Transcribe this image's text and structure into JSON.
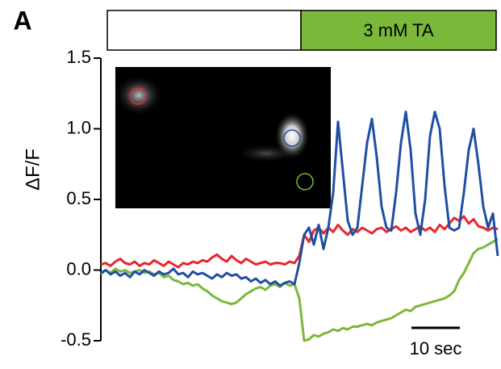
{
  "chart_data": {
    "type": "line",
    "panel_label": "A",
    "stimulus_label": "3 mM TA",
    "y_label": "ΔF/F",
    "scale_bar": {
      "value": 10,
      "label": "10 sec"
    },
    "ylim": [
      -0.5,
      1.5
    ],
    "yticks": [
      -0.5,
      {
        "value": 0,
        "label": "0.0"
      },
      0.5,
      {
        "value": 1,
        "label": "1.0"
      },
      1.5
    ],
    "xlim": [
      0,
      82
    ],
    "x": [
      0,
      1,
      2,
      3,
      4,
      5,
      6,
      7,
      8,
      9,
      10,
      11,
      12,
      13,
      14,
      15,
      16,
      17,
      18,
      19,
      20,
      21,
      22,
      23,
      24,
      25,
      26,
      27,
      28,
      29,
      30,
      31,
      32,
      33,
      34,
      35,
      36,
      37,
      38,
      39,
      40,
      41,
      42,
      43,
      44,
      45,
      46,
      47,
      48,
      49,
      50,
      51,
      52,
      53,
      54,
      55,
      56,
      57,
      58,
      59,
      60,
      61,
      62,
      63,
      64,
      65,
      66,
      67,
      68,
      69,
      70,
      71,
      72,
      73,
      74,
      75,
      76,
      77,
      78,
      79,
      80,
      81,
      82
    ],
    "series": [
      {
        "color": "#e8262a",
        "values": [
          0.04,
          0.05,
          0.03,
          0.06,
          0.08,
          0.05,
          0.04,
          0.06,
          0.03,
          0.05,
          0.04,
          0.07,
          0.05,
          0.03,
          0.06,
          0.04,
          0.02,
          0.05,
          0.04,
          0.06,
          0.05,
          0.07,
          0.06,
          0.09,
          0.11,
          0.08,
          0.06,
          0.1,
          0.07,
          0.05,
          0.08,
          0.06,
          0.04,
          0.05,
          0.06,
          0.04,
          0.05,
          0.05,
          0.04,
          0.06,
          0.05,
          0.1,
          0.25,
          0.2,
          0.28,
          0.3,
          0.26,
          0.3,
          0.27,
          0.32,
          0.28,
          0.25,
          0.29,
          0.27,
          0.3,
          0.28,
          0.26,
          0.29,
          0.3,
          0.27,
          0.29,
          0.31,
          0.28,
          0.3,
          0.27,
          0.29,
          0.31,
          0.28,
          0.3,
          0.27,
          0.32,
          0.29,
          0.33,
          0.37,
          0.35,
          0.38,
          0.33,
          0.36,
          0.31,
          0.3,
          0.28,
          0.3,
          0.29
        ]
      },
      {
        "color": "#7ab83a",
        "values": [
          -0.03,
          0.0,
          -0.02,
          0.01,
          -0.01,
          0.0,
          -0.02,
          -0.01,
          0.0,
          -0.02,
          -0.01,
          -0.03,
          -0.02,
          -0.05,
          -0.04,
          -0.07,
          -0.08,
          -0.1,
          -0.09,
          -0.11,
          -0.1,
          -0.13,
          -0.15,
          -0.18,
          -0.2,
          -0.22,
          -0.23,
          -0.24,
          -0.23,
          -0.2,
          -0.17,
          -0.15,
          -0.13,
          -0.12,
          -0.14,
          -0.11,
          -0.1,
          -0.12,
          -0.09,
          -0.11,
          -0.1,
          -0.2,
          -0.5,
          -0.49,
          -0.46,
          -0.47,
          -0.45,
          -0.44,
          -0.42,
          -0.43,
          -0.41,
          -0.42,
          -0.4,
          -0.4,
          -0.39,
          -0.38,
          -0.39,
          -0.37,
          -0.36,
          -0.35,
          -0.34,
          -0.32,
          -0.3,
          -0.28,
          -0.29,
          -0.26,
          -0.25,
          -0.24,
          -0.23,
          -0.22,
          -0.21,
          -0.2,
          -0.18,
          -0.15,
          -0.07,
          -0.02,
          0.05,
          0.12,
          0.15,
          0.16,
          0.18,
          0.2,
          0.22
        ]
      },
      {
        "color": "#1f4fa3",
        "values": [
          -0.02,
          0.0,
          -0.03,
          -0.01,
          -0.04,
          -0.02,
          -0.05,
          -0.01,
          -0.03,
          0.0,
          -0.02,
          -0.04,
          -0.01,
          -0.03,
          -0.02,
          0.01,
          -0.03,
          -0.02,
          -0.05,
          -0.01,
          -0.03,
          -0.02,
          -0.04,
          -0.06,
          -0.03,
          -0.05,
          -0.02,
          -0.04,
          -0.03,
          -0.06,
          -0.05,
          -0.08,
          -0.06,
          -0.09,
          -0.07,
          -0.1,
          -0.08,
          -0.11,
          -0.09,
          -0.08,
          -0.1,
          0.05,
          0.25,
          0.3,
          0.18,
          0.32,
          0.15,
          0.3,
          0.55,
          1.05,
          0.7,
          0.35,
          0.25,
          0.3,
          0.6,
          0.9,
          1.07,
          0.8,
          0.45,
          0.3,
          0.28,
          0.55,
          0.9,
          1.12,
          0.85,
          0.4,
          0.25,
          0.5,
          0.95,
          1.12,
          1.0,
          0.6,
          0.3,
          0.28,
          0.3,
          0.55,
          0.85,
          1.0,
          0.75,
          0.45,
          0.3,
          0.4,
          0.1
        ]
      }
    ]
  }
}
